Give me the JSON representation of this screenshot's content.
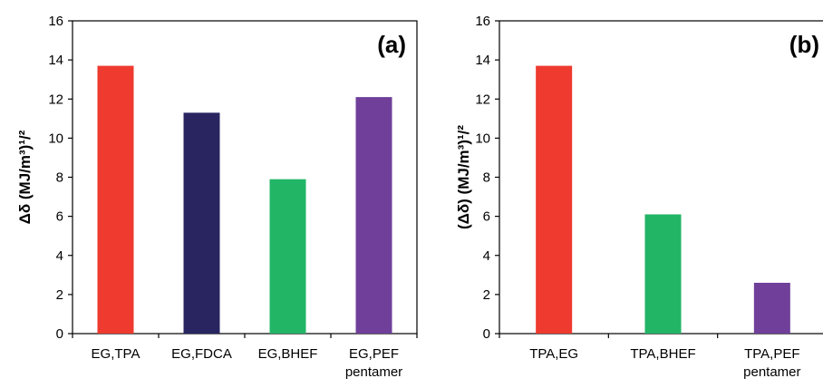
{
  "chart_data": [
    {
      "type": "bar",
      "panel_label": "(a)",
      "ylabel": "Δδ (MJ/m³)¹/²",
      "ylim": [
        0,
        16
      ],
      "yticks": [
        0,
        2,
        4,
        6,
        8,
        10,
        12,
        14,
        16
      ],
      "categories": [
        [
          "EG,TPA"
        ],
        [
          "EG,FDCA"
        ],
        [
          "EG,BHEF"
        ],
        [
          "EG,PEF",
          "pentamer"
        ]
      ],
      "values": [
        13.7,
        11.3,
        7.9,
        12.1
      ],
      "colors": [
        "#ee3a2f",
        "#282561",
        "#22b566",
        "#6f3f9a"
      ],
      "grid": false
    },
    {
      "type": "bar",
      "panel_label": "(b)",
      "ylabel": "(Δδ) (MJ/m³)¹/²",
      "ylim": [
        0,
        16
      ],
      "yticks": [
        0,
        2,
        4,
        6,
        8,
        10,
        12,
        14,
        16
      ],
      "categories": [
        [
          "TPA,EG"
        ],
        [
          "TPA,BHEF"
        ],
        [
          "TPA,PEF",
          "pentamer"
        ]
      ],
      "values": [
        13.7,
        6.1,
        2.6
      ],
      "colors": [
        "#ee3a2f",
        "#22b566",
        "#6f3f9a"
      ],
      "grid": false
    }
  ]
}
